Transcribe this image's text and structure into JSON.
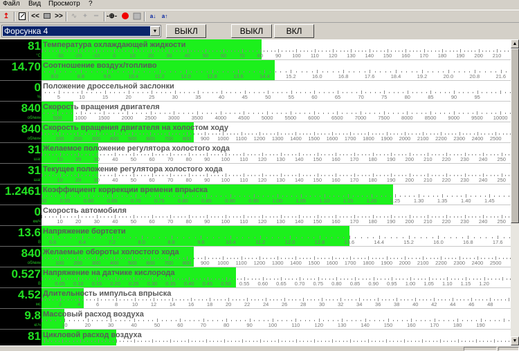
{
  "menu": [
    "Файл",
    "Вид",
    "Просмотр",
    "?"
  ],
  "toolbar": {
    "icons": [
      "exit-arrow-icon",
      "edit-document-icon",
      "rewind-icon",
      "stop-icon",
      "forward-icon",
      "waveform-icon",
      "add-point-icon",
      "remove-point-icon",
      "oscilloscope-icon",
      "record-icon",
      "chart-icon",
      "sort-down-icon",
      "sort-up-icon"
    ],
    "glyphs": {
      "rewind": "<<",
      "forward": ">>",
      "sort_down": "a↓",
      "sort_up": "a↑"
    }
  },
  "controls": {
    "selected": "Форсунка 4",
    "button1": "ВЫКЛ",
    "button2": "ВЫКЛ",
    "button3": "ВКЛ"
  },
  "colors": {
    "fill": "#1cf01c",
    "value": "#22e022",
    "panel": "#000000"
  },
  "rows": [
    {
      "title": "Температура охлаждающей жидкости",
      "value": "81",
      "num": 81,
      "unit": "°C",
      "scale": [
        -40,
        217.6
      ],
      "labels": [
        "-30",
        "-20",
        "-10",
        "0",
        "10",
        "20",
        "30",
        "40",
        "50",
        "60",
        "70",
        "80",
        "90",
        "100",
        "110",
        "120",
        "130",
        "140",
        "150",
        "160",
        "170",
        "180",
        "190",
        "200",
        "210"
      ]
    },
    {
      "title": "Соотношение воздух/топливо",
      "value": "14.70",
      "num": 14.7,
      "unit": "",
      "scale": [
        7.6,
        21.9
      ],
      "labels": [
        "8.0",
        "8.8",
        "9.6",
        "10.4",
        "11.2",
        "12.0",
        "12.8",
        "13.6",
        "14.4",
        "15.2",
        "16.0",
        "16.8",
        "17.6",
        "18.4",
        "19.2",
        "20.0",
        "20.8",
        "21.6"
      ]
    },
    {
      "title": "Положение дроссельной заслонки",
      "value": "0",
      "num": 0,
      "unit": "%",
      "scale": [
        1.3,
        102.2
      ],
      "labels": [
        "5",
        "10",
        "15",
        "20",
        "25",
        "30",
        "35",
        "40",
        "45",
        "50",
        "55",
        "60",
        "65",
        "70",
        "75",
        "80",
        "85",
        "90",
        "95"
      ]
    },
    {
      "title": "Скорость вращения двигателя",
      "value": "840",
      "num": 840,
      "unit": "об/мин",
      "scale": [
        160,
        10220
      ],
      "labels": [
        "500",
        "1000",
        "1500",
        "2000",
        "2500",
        "3000",
        "3500",
        "4000",
        "4500",
        "5000",
        "5500",
        "6000",
        "6500",
        "7000",
        "7500",
        "8000",
        "8500",
        "9000",
        "9500",
        "10000"
      ]
    },
    {
      "title": "Скорость вращения двигателя на холостом ходу",
      "value": "840",
      "num": 840,
      "unit": "об/мин",
      "scale": [
        0,
        2583
      ],
      "labels": [
        "100",
        "200",
        "300",
        "400",
        "500",
        "600",
        "700",
        "800",
        "900",
        "1000",
        "1100",
        "1200",
        "1300",
        "1400",
        "1500",
        "1600",
        "1700",
        "1800",
        "1900",
        "2000",
        "2100",
        "2200",
        "2300",
        "2400",
        "2500"
      ]
    },
    {
      "title": "Желаемое положение регулятора холостого хода",
      "value": "31",
      "num": 31,
      "unit": "шаг",
      "scale": [
        0,
        255
      ],
      "labels": [
        "10",
        "20",
        "30",
        "40",
        "50",
        "60",
        "70",
        "80",
        "90",
        "100",
        "110",
        "120",
        "130",
        "140",
        "150",
        "160",
        "170",
        "180",
        "190",
        "200",
        "210",
        "220",
        "230",
        "240",
        "250"
      ]
    },
    {
      "title": "Текущее положение регулятора холостого хода",
      "value": "31",
      "num": 31,
      "unit": "шаг",
      "scale": [
        0,
        255
      ],
      "labels": [
        "10",
        "20",
        "30",
        "40",
        "50",
        "60",
        "70",
        "80",
        "90",
        "100",
        "110",
        "120",
        "130",
        "140",
        "150",
        "160",
        "170",
        "180",
        "190",
        "200",
        "210",
        "220",
        "230",
        "240",
        "250"
      ]
    },
    {
      "title": "Коэффициент коррекции времени впрыска",
      "value": "1.2461",
      "num": 1.2461,
      "unit": "",
      "scale": [
        0.5,
        1.495
      ],
      "labels": [
        "0.50",
        "0.55",
        "0.60",
        "0.65",
        "0.70",
        "0.75",
        "0.80",
        "0.85",
        "0.90",
        "0.95",
        "1.00",
        "1.05",
        "1.10",
        "1.15",
        "1.20",
        "1.25",
        "1.30",
        "1.35",
        "1.40",
        "1.45"
      ]
    },
    {
      "title": "Скорость автомобиля",
      "value": "0",
      "num": 0,
      "unit": "км/ч",
      "scale": [
        0,
        255
      ],
      "labels": [
        "10",
        "20",
        "30",
        "40",
        "50",
        "60",
        "70",
        "80",
        "90",
        "100",
        "110",
        "120",
        "130",
        "140",
        "150",
        "160",
        "170",
        "180",
        "190",
        "200",
        "210",
        "220",
        "230",
        "240",
        "250"
      ]
    },
    {
      "title": "Напряжение бортсети",
      "value": "13.6",
      "num": 13.6,
      "unit": "В",
      "scale": [
        5.3,
        17.95
      ],
      "labels": [
        "5.6",
        "6.4",
        "7.2",
        "8.0",
        "8.8",
        "9.6",
        "10.4",
        "11.2",
        "12.0",
        "12.8",
        "13.6",
        "14.4",
        "15.2",
        "16.0",
        "16.8",
        "17.6"
      ]
    },
    {
      "title": "Желаемые обороты холостого хода",
      "value": "840",
      "num": 840,
      "unit": "об/мин",
      "scale": [
        0,
        2583
      ],
      "labels": [
        "100",
        "200",
        "300",
        "400",
        "500",
        "600",
        "700",
        "800",
        "900",
        "1000",
        "1100",
        "1200",
        "1300",
        "1400",
        "1500",
        "1600",
        "1700",
        "1800",
        "1900",
        "2000",
        "2100",
        "2200",
        "2300",
        "2400",
        "2500"
      ]
    },
    {
      "title": "Напряжение на датчике кислорода",
      "value": "0.527",
      "num": 0.527,
      "unit": "В",
      "scale": [
        0,
        1.272
      ],
      "labels": [
        "0.05",
        "0.10",
        "0.15",
        "0.20",
        "0.25",
        "0.30",
        "0.35",
        "0.40",
        "0.45",
        "0.50",
        "0.55",
        "0.60",
        "0.65",
        "0.70",
        "0.75",
        "0.80",
        "0.85",
        "0.90",
        "0.95",
        "1.00",
        "1.05",
        "1.10",
        "1.15",
        "1.20"
      ]
    },
    {
      "title": "Длительность импульса впрыска",
      "value": "4.52",
      "num": 4.52,
      "unit": "мс",
      "scale": [
        0,
        50.2
      ],
      "labels": [
        "2",
        "4",
        "6",
        "8",
        "10",
        "12",
        "14",
        "16",
        "18",
        "20",
        "22",
        "24",
        "26",
        "28",
        "30",
        "32",
        "34",
        "36",
        "38",
        "40",
        "42",
        "44",
        "46",
        "48"
      ]
    },
    {
      "title": "Массовый расход воздуха",
      "value": "9.8",
      "num": 9.8,
      "unit": "кг/ч",
      "scale": [
        0,
        203
      ],
      "labels": [
        "10",
        "20",
        "30",
        "40",
        "50",
        "60",
        "70",
        "80",
        "90",
        "100",
        "110",
        "120",
        "130",
        "140",
        "150",
        "160",
        "170",
        "180",
        "190"
      ]
    },
    {
      "title": "Цикловой расход воздуха",
      "value": "81",
      "num": 81,
      "unit": "",
      "fill": 0.16,
      "labels": []
    }
  ]
}
